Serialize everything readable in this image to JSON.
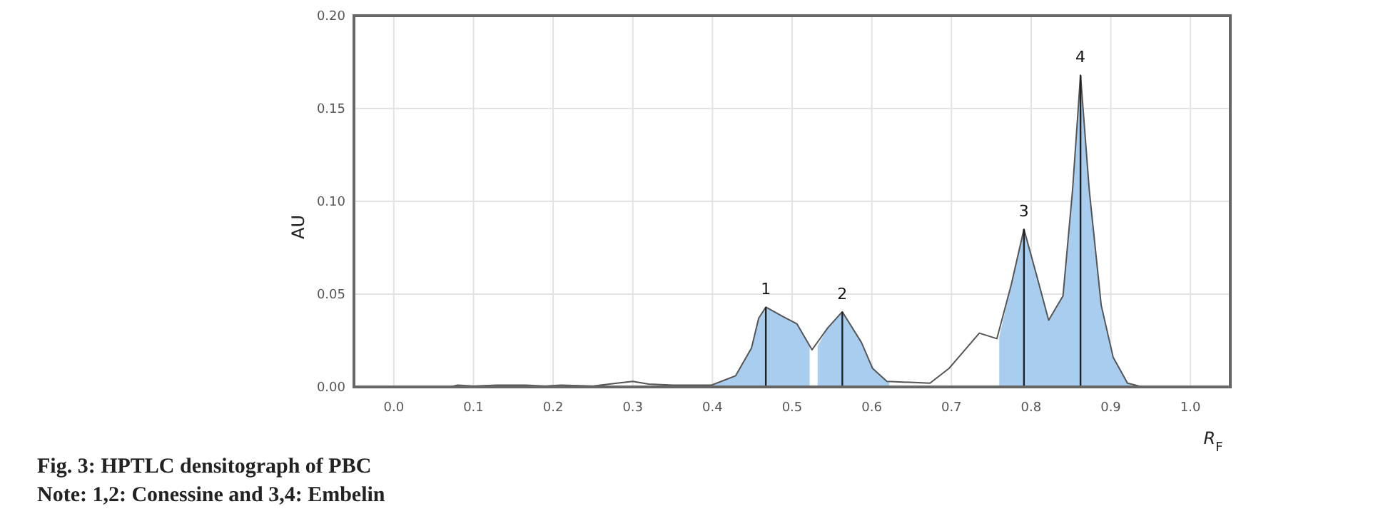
{
  "chart_data": {
    "type": "line",
    "title": "Fig. 3: HPTLC densitograph of PBC",
    "xlabel": "R$_{F}$",
    "ylabel": "AU",
    "annotations": [
      "Note: 1,2: Conessine and 3,4: Embelin",
      {
        "text": "1",
        "x": 0.467,
        "y": 0.043
      },
      {
        "text": "2",
        "x": 0.563,
        "y": 0.0405
      },
      {
        "text": "3",
        "x": 0.791,
        "y": 0.085
      },
      {
        "text": "4",
        "x": 0.862,
        "y": 0.168
      }
    ],
    "ref_lines": [
      {
        "axis": "x",
        "value": 0.467,
        "color": "#222222"
      },
      {
        "axis": "x",
        "value": 0.563,
        "color": "#222222"
      },
      {
        "axis": "x",
        "value": 0.791,
        "color": "#222222"
      },
      {
        "axis": "x",
        "value": 0.862,
        "color": "#222222"
      }
    ],
    "xlim": [
      -0.05,
      1.05
    ],
    "ylim": [
      0,
      0.2
    ],
    "xticks": [
      {
        "value": 0,
        "label": "0.0"
      },
      {
        "value": 0.1,
        "label": "0.1"
      },
      {
        "value": 0.2,
        "label": "0.2"
      },
      {
        "value": 0.3,
        "label": "0.3"
      },
      {
        "value": 0.4,
        "label": "0.4"
      },
      {
        "value": 0.5,
        "label": "0.5"
      },
      {
        "value": 0.6,
        "label": "0.6"
      },
      {
        "value": 0.7,
        "label": "0.7"
      },
      {
        "value": 0.8,
        "label": "0.8"
      },
      {
        "value": 0.9,
        "label": "0.9"
      },
      {
        "value": 1,
        "label": "1.0"
      }
    ],
    "yticks": [
      {
        "value": 0,
        "label": "0.00"
      },
      {
        "value": 0.05,
        "label": "0.05"
      },
      {
        "value": 0.1,
        "label": "0.10"
      },
      {
        "value": 0.15,
        "label": "0.15"
      },
      {
        "value": 0.2,
        "label": "0.20"
      }
    ],
    "grid": true,
    "series": [
      {
        "type": "area",
        "color": "#a8cdee",
        "x": [
          0.399,
          0.429,
          0.449,
          0.458,
          0.467,
          0.488,
          0.506,
          0.522
        ],
        "values": [
          0.001,
          0.006,
          0.021,
          0.037,
          0.043,
          0.038,
          0.034,
          0.022
        ]
      },
      {
        "type": "area",
        "color": "#a8cdee",
        "x": [
          0.532,
          0.545,
          0.563,
          0.587,
          0.601,
          0.619,
          0.622
        ],
        "values": [
          0.022,
          0.032,
          0.0405,
          0.024,
          0.01,
          0.003,
          0.003
        ]
      },
      {
        "type": "area",
        "color": "#a8cdee",
        "x": [
          0.76,
          0.775,
          0.791,
          0.807,
          0.822,
          0.84,
          0.852,
          0.862,
          0.873,
          0.888,
          0.903,
          0.921,
          0.93
        ],
        "values": [
          0.027,
          0.055,
          0.085,
          0.06,
          0.036,
          0.049,
          0.106,
          0.168,
          0.106,
          0.044,
          0.016,
          0.002,
          0
        ]
      },
      {
        "color": "#555555",
        "x": [
          -0.05,
          0.07,
          0.08,
          0.1,
          0.13,
          0.165,
          0.19,
          0.21,
          0.25,
          0.28,
          0.3,
          0.32,
          0.35,
          0.38,
          0.399,
          0.429,
          0.449,
          0.458,
          0.467,
          0.488,
          0.506,
          0.525,
          0.545,
          0.563,
          0.587,
          0.601,
          0.619,
          0.673,
          0.697,
          0.735,
          0.757,
          0.775,
          0.791,
          0.807,
          0.822,
          0.84,
          0.852,
          0.862,
          0.873,
          0.888,
          0.903,
          0.921,
          0.94,
          1.05
        ],
        "values": [
          0,
          0,
          0.001,
          0.0005,
          0.001,
          0.001,
          0.0005,
          0.001,
          0.0005,
          0.002,
          0.003,
          0.0015,
          0.001,
          0.001,
          0.001,
          0.006,
          0.021,
          0.037,
          0.043,
          0.038,
          0.034,
          0.02,
          0.032,
          0.0405,
          0.024,
          0.01,
          0.003,
          0.002,
          0.01,
          0.029,
          0.026,
          0.055,
          0.085,
          0.06,
          0.036,
          0.049,
          0.106,
          0.168,
          0.106,
          0.044,
          0.016,
          0.002,
          0,
          0
        ]
      }
    ]
  }
}
